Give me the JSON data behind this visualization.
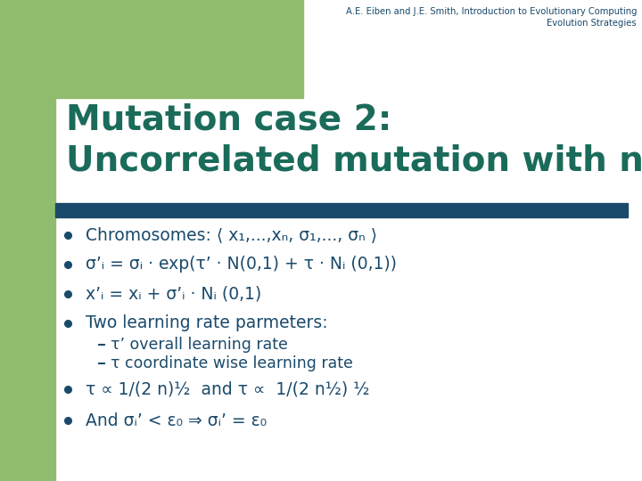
{
  "bg_color": "#ffffff",
  "left_bar_color": "#8fbc6e",
  "top_bar_color": "#8fbc6e",
  "header_bar_color": "#1a4a6b",
  "title_color": "#1a6b5a",
  "header_right_line1": "A.E. Eiben and J.E. Smith, Introduction to Evolutionary Computing",
  "header_right_line2": "Evolution Strategies",
  "title_text_line1": "Mutation case 2:",
  "title_text_line2": "Uncorrelated mutation with n σ’s",
  "bullet_color": "#1a4a6b",
  "bullet_text_color": "#1a4a6b",
  "bullets": [
    "Chromosomes: ⟨ x₁,...,xₙ, σ₁,..., σₙ ⟩",
    "σ’ᵢ = σᵢ · exp(τ’ · N(0,1) + τ · Nᵢ (0,1))",
    "x’ᵢ = xᵢ + σ’ᵢ · Nᵢ (0,1)",
    "Two learning rate parmeters:"
  ],
  "sub_bullets": [
    "τ’ overall learning rate",
    "τ coordinate wise learning rate"
  ],
  "bullets2": [
    "τ ∝ 1/(2 n)½  and τ ∝  1/(2 n½) ½",
    "And σᵢ’ < ε₀ ⇒ σᵢ’ = ε₀"
  ]
}
